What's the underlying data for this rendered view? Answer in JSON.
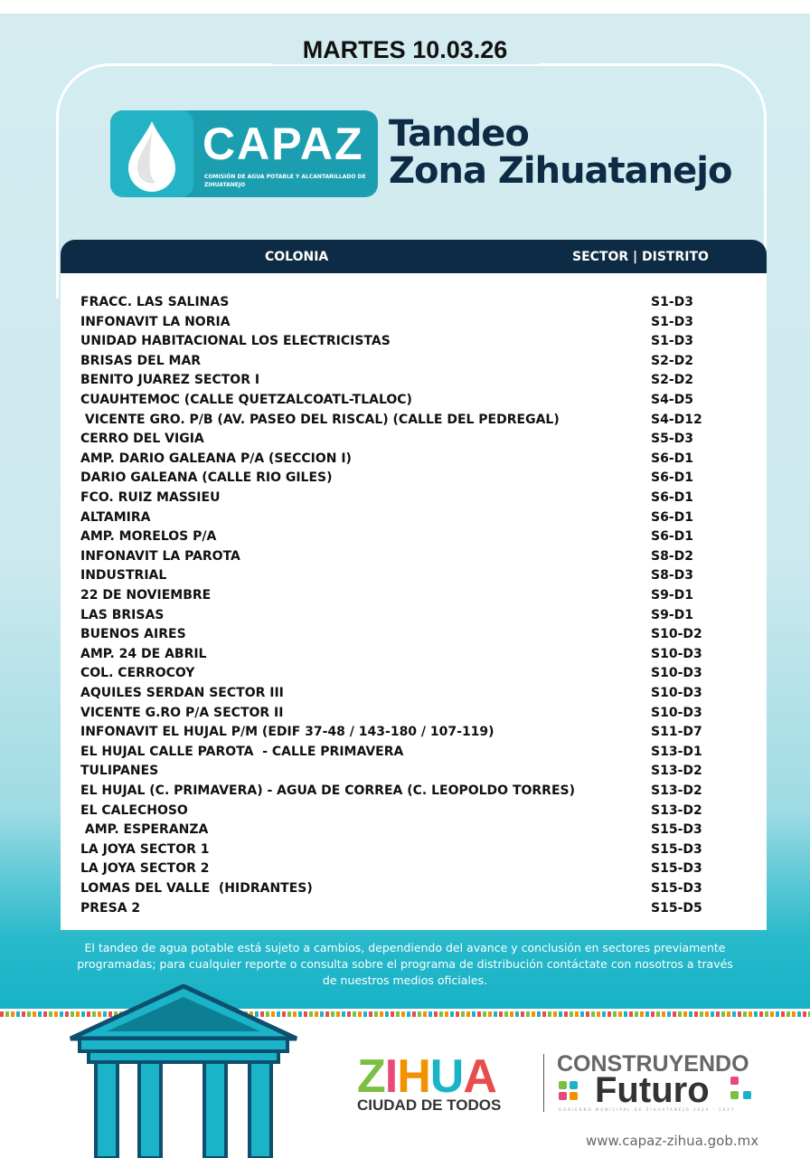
{
  "header": {
    "date": "MARTES 10.03.26",
    "logo_name": "CAPAZ",
    "logo_subtitle": "COMISIÓN DE AGUA POTABLE Y ALCANTARILLADO DE ZIHUATANEJO",
    "title_line1": "Tandeo",
    "title_line2": "Zona Zihuatanejo"
  },
  "table": {
    "col_colonia": "COLONIA",
    "col_sector": "SECTOR | DISTRITO",
    "rows": [
      [
        "FRACC. LAS SALINAS",
        "S1-D3"
      ],
      [
        "INFONAVIT LA NORIA",
        "S1-D3"
      ],
      [
        "UNIDAD HABITACIONAL LOS ELECTRICISTAS",
        "S1-D3"
      ],
      [
        "BRISAS DEL MAR",
        "S2-D2"
      ],
      [
        "BENITO JUAREZ SECTOR I",
        "S2-D2"
      ],
      [
        "CUAUHTEMOC (CALLE QUETZALCOATL-TLALOC)",
        "S4-D5"
      ],
      [
        " VICENTE GRO. P/B (AV. PASEO DEL RISCAL) (CALLE DEL PEDREGAL)",
        "S4-D12"
      ],
      [
        "CERRO DEL VIGIA",
        "S5-D3"
      ],
      [
        "AMP. DARIO GALEANA P/A (SECCION I)",
        "S6-D1"
      ],
      [
        "DARIO GALEANA (CALLE RIO GILES)",
        "S6-D1"
      ],
      [
        "FCO. RUIZ MASSIEU",
        "S6-D1"
      ],
      [
        "ALTAMIRA",
        "S6-D1"
      ],
      [
        "AMP. MORELOS P/A",
        "S6-D1"
      ],
      [
        "INFONAVIT LA PAROTA",
        "S8-D2"
      ],
      [
        "INDUSTRIAL",
        "S8-D3"
      ],
      [
        "22 DE NOVIEMBRE",
        "S9-D1"
      ],
      [
        "LAS BRISAS",
        "S9-D1"
      ],
      [
        "BUENOS AIRES",
        "S10-D2"
      ],
      [
        "AMP. 24 DE ABRIL",
        "S10-D3"
      ],
      [
        "COL. CERROCOY",
        "S10-D3"
      ],
      [
        "AQUILES SERDAN SECTOR III",
        "S10-D3"
      ],
      [
        "VICENTE G.RO P/A SECTOR II",
        "S10-D3"
      ],
      [
        "INFONAVIT EL HUJAL P/M (EDIF 37-48 / 143-180 / 107-119)",
        "S11-D7"
      ],
      [
        "EL HUJAL CALLE PAROTA  - CALLE PRIMAVERA",
        "S13-D1"
      ],
      [
        "TULIPANES",
        "S13-D2"
      ],
      [
        "EL HUJAL (C. PRIMAVERA) - AGUA DE CORREA (C. LEOPOLDO TORRES)",
        "S13-D2"
      ],
      [
        "EL CALECHOSO",
        "S13-D2"
      ],
      [
        " AMP. ESPERANZA",
        "S15-D3"
      ],
      [
        "LA JOYA SECTOR 1",
        "S15-D3"
      ],
      [
        "LA JOYA SECTOR 2",
        "S15-D3"
      ],
      [
        "LOMAS DEL VALLE  (HIDRANTES)",
        "S15-D3"
      ],
      [
        "PRESA 2",
        "S15-D5"
      ]
    ]
  },
  "note": "El tandeo de agua potable está sujeto a cambios, dependiendo del avance y conclusión en sectores previamente programadas; para cualquier reporte o consulta sobre el programa de distribución contáctate con nosotros a través de nuestros medios oficiales.",
  "footer": {
    "zihua_letters": [
      "Z",
      "I",
      "H",
      "U",
      "A"
    ],
    "zihua_colors": [
      "#7bc043",
      "#e8487a",
      "#f39200",
      "#1ab3c8",
      "#e84c4c"
    ],
    "ciudad": "CIUDAD DE TODOS",
    "construyendo": "CONSTRUYENDO",
    "futuro": "Futuro",
    "gobierno": "GOBIERNO MUNICIPAL DE ZIHUATANEJO 2024 - 2027",
    "website": "www.capaz-zihua.gob.mx"
  },
  "colors": {
    "navy": "#0d2b45",
    "teal": "#1b9fb0"
  }
}
